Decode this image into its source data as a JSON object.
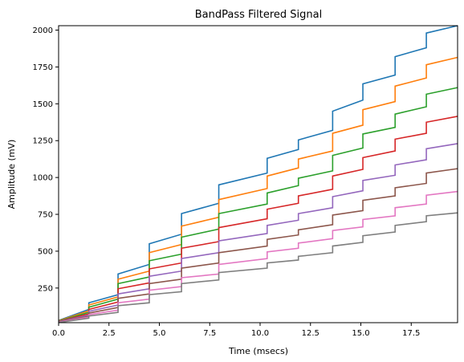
{
  "chart_data": {
    "type": "line",
    "title": "BandPass Filtered Signal",
    "xlabel": "Time (msecs)",
    "ylabel": "Amplitude (mV)",
    "xlim": [
      0,
      19.8
    ],
    "ylim": [
      15,
      2030
    ],
    "xticks": [
      0,
      2.5,
      5,
      7.5,
      10,
      12.5,
      15,
      17.5
    ],
    "xtick_labels": [
      "0.0",
      "2.5",
      "5.0",
      "7.5",
      "10.0",
      "12.5",
      "15.0",
      "17.5"
    ],
    "yticks": [
      250,
      500,
      750,
      1000,
      1250,
      1500,
      1750,
      2000
    ],
    "ytick_labels": [
      "250",
      "500",
      "750",
      "1000",
      "1250",
      "1500",
      "1750",
      "2000"
    ],
    "grid": false,
    "legend": "none",
    "step_times": [
      1.5,
      2.95,
      4.5,
      6.1,
      7.95,
      10.35,
      11.9,
      13.6,
      15.1,
      16.7,
      18.25
    ],
    "series": [
      {
        "color": "#1f77b4",
        "points": [
          [
            0,
            30
          ],
          [
            1.5,
            105
          ],
          [
            1.5,
            150
          ],
          [
            2.95,
            205
          ],
          [
            2.95,
            345
          ],
          [
            4.5,
            410
          ],
          [
            4.5,
            550
          ],
          [
            6.1,
            615
          ],
          [
            6.1,
            755
          ],
          [
            7.95,
            825
          ],
          [
            7.95,
            950
          ],
          [
            10.35,
            1030
          ],
          [
            10.35,
            1130
          ],
          [
            11.9,
            1190
          ],
          [
            11.9,
            1255
          ],
          [
            13.6,
            1320
          ],
          [
            13.6,
            1450
          ],
          [
            15.1,
            1525
          ],
          [
            15.1,
            1635
          ],
          [
            16.7,
            1695
          ],
          [
            16.7,
            1820
          ],
          [
            18.25,
            1880
          ],
          [
            18.25,
            1980
          ],
          [
            19.8,
            2030
          ]
        ]
      },
      {
        "color": "#ff7f0e",
        "points": [
          [
            0,
            28
          ],
          [
            1.5,
            95
          ],
          [
            1.5,
            135
          ],
          [
            2.95,
            190
          ],
          [
            2.95,
            310
          ],
          [
            4.5,
            365
          ],
          [
            4.5,
            490
          ],
          [
            6.1,
            545
          ],
          [
            6.1,
            670
          ],
          [
            7.95,
            730
          ],
          [
            7.95,
            850
          ],
          [
            10.35,
            925
          ],
          [
            10.35,
            1010
          ],
          [
            11.9,
            1065
          ],
          [
            11.9,
            1125
          ],
          [
            13.6,
            1180
          ],
          [
            13.6,
            1300
          ],
          [
            15.1,
            1355
          ],
          [
            15.1,
            1460
          ],
          [
            16.7,
            1515
          ],
          [
            16.7,
            1620
          ],
          [
            18.25,
            1675
          ],
          [
            18.25,
            1765
          ],
          [
            19.8,
            1815
          ]
        ]
      },
      {
        "color": "#2ca02c",
        "points": [
          [
            0,
            26
          ],
          [
            1.5,
            85
          ],
          [
            1.5,
            120
          ],
          [
            2.95,
            175
          ],
          [
            2.95,
            280
          ],
          [
            4.5,
            325
          ],
          [
            4.5,
            435
          ],
          [
            6.1,
            480
          ],
          [
            6.1,
            595
          ],
          [
            7.95,
            650
          ],
          [
            7.95,
            755
          ],
          [
            10.35,
            820
          ],
          [
            10.35,
            895
          ],
          [
            11.9,
            945
          ],
          [
            11.9,
            995
          ],
          [
            13.6,
            1045
          ],
          [
            13.6,
            1150
          ],
          [
            15.1,
            1200
          ],
          [
            15.1,
            1295
          ],
          [
            16.7,
            1340
          ],
          [
            16.7,
            1430
          ],
          [
            18.25,
            1480
          ],
          [
            18.25,
            1565
          ],
          [
            19.8,
            1610
          ]
        ]
      },
      {
        "color": "#d62728",
        "points": [
          [
            0,
            24
          ],
          [
            1.5,
            75
          ],
          [
            1.5,
            105
          ],
          [
            2.95,
            155
          ],
          [
            2.95,
            245
          ],
          [
            4.5,
            285
          ],
          [
            4.5,
            380
          ],
          [
            6.1,
            420
          ],
          [
            6.1,
            520
          ],
          [
            7.95,
            565
          ],
          [
            7.95,
            660
          ],
          [
            10.35,
            720
          ],
          [
            10.35,
            785
          ],
          [
            11.9,
            825
          ],
          [
            11.9,
            875
          ],
          [
            13.6,
            920
          ],
          [
            13.6,
            1010
          ],
          [
            15.1,
            1055
          ],
          [
            15.1,
            1135
          ],
          [
            16.7,
            1180
          ],
          [
            16.7,
            1260
          ],
          [
            18.25,
            1300
          ],
          [
            18.25,
            1375
          ],
          [
            19.8,
            1415
          ]
        ]
      },
      {
        "color": "#9467bd",
        "points": [
          [
            0,
            22
          ],
          [
            1.5,
            65
          ],
          [
            1.5,
            92
          ],
          [
            2.95,
            135
          ],
          [
            2.95,
            210
          ],
          [
            4.5,
            245
          ],
          [
            4.5,
            330
          ],
          [
            6.1,
            365
          ],
          [
            6.1,
            450
          ],
          [
            7.95,
            490
          ],
          [
            7.95,
            570
          ],
          [
            10.35,
            620
          ],
          [
            10.35,
            675
          ],
          [
            11.9,
            710
          ],
          [
            11.9,
            755
          ],
          [
            13.6,
            795
          ],
          [
            13.6,
            870
          ],
          [
            15.1,
            910
          ],
          [
            15.1,
            980
          ],
          [
            16.7,
            1015
          ],
          [
            16.7,
            1085
          ],
          [
            18.25,
            1120
          ],
          [
            18.25,
            1195
          ],
          [
            19.8,
            1230
          ]
        ]
      },
      {
        "color": "#8c564b",
        "points": [
          [
            0,
            20
          ],
          [
            1.5,
            58
          ],
          [
            1.5,
            80
          ],
          [
            2.95,
            118
          ],
          [
            2.95,
            180
          ],
          [
            4.5,
            210
          ],
          [
            4.5,
            280
          ],
          [
            6.1,
            310
          ],
          [
            6.1,
            385
          ],
          [
            7.95,
            420
          ],
          [
            7.95,
            490
          ],
          [
            10.35,
            535
          ],
          [
            10.35,
            580
          ],
          [
            11.9,
            610
          ],
          [
            11.9,
            645
          ],
          [
            13.6,
            680
          ],
          [
            13.6,
            745
          ],
          [
            15.1,
            775
          ],
          [
            15.1,
            845
          ],
          [
            16.7,
            875
          ],
          [
            16.7,
            930
          ],
          [
            18.25,
            960
          ],
          [
            18.25,
            1030
          ],
          [
            19.8,
            1060
          ]
        ]
      },
      {
        "color": "#e377c2",
        "points": [
          [
            0,
            18
          ],
          [
            1.5,
            52
          ],
          [
            1.5,
            70
          ],
          [
            2.95,
            100
          ],
          [
            2.95,
            150
          ],
          [
            4.5,
            175
          ],
          [
            4.5,
            235
          ],
          [
            6.1,
            260
          ],
          [
            6.1,
            320
          ],
          [
            7.95,
            345
          ],
          [
            7.95,
            410
          ],
          [
            10.35,
            450
          ],
          [
            10.35,
            495
          ],
          [
            11.9,
            520
          ],
          [
            11.9,
            555
          ],
          [
            13.6,
            585
          ],
          [
            13.6,
            640
          ],
          [
            15.1,
            665
          ],
          [
            15.1,
            715
          ],
          [
            16.7,
            740
          ],
          [
            16.7,
            795
          ],
          [
            18.25,
            820
          ],
          [
            18.25,
            880
          ],
          [
            19.8,
            905
          ]
        ]
      },
      {
        "color": "#7f7f7f",
        "points": [
          [
            0,
            16
          ],
          [
            1.5,
            45
          ],
          [
            1.5,
            60
          ],
          [
            2.95,
            85
          ],
          [
            2.95,
            130
          ],
          [
            4.5,
            150
          ],
          [
            4.5,
            205
          ],
          [
            6.1,
            225
          ],
          [
            6.1,
            280
          ],
          [
            7.95,
            305
          ],
          [
            7.95,
            355
          ],
          [
            10.35,
            385
          ],
          [
            10.35,
            420
          ],
          [
            11.9,
            440
          ],
          [
            11.9,
            465
          ],
          [
            13.6,
            490
          ],
          [
            13.6,
            535
          ],
          [
            15.1,
            560
          ],
          [
            15.1,
            605
          ],
          [
            16.7,
            630
          ],
          [
            16.7,
            675
          ],
          [
            18.25,
            700
          ],
          [
            18.25,
            740
          ],
          [
            19.8,
            760
          ]
        ]
      }
    ]
  }
}
